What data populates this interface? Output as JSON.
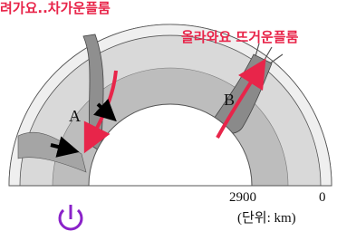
{
  "annotations": {
    "cold_plume": "려가요..차가운플룸",
    "hot_plume": "올라와요 뜨거운플룸"
  },
  "labels": {
    "a": "A",
    "b": "B"
  },
  "scale": {
    "inner": "2900",
    "outer": "0",
    "unit": "(단위: km)"
  }
}
